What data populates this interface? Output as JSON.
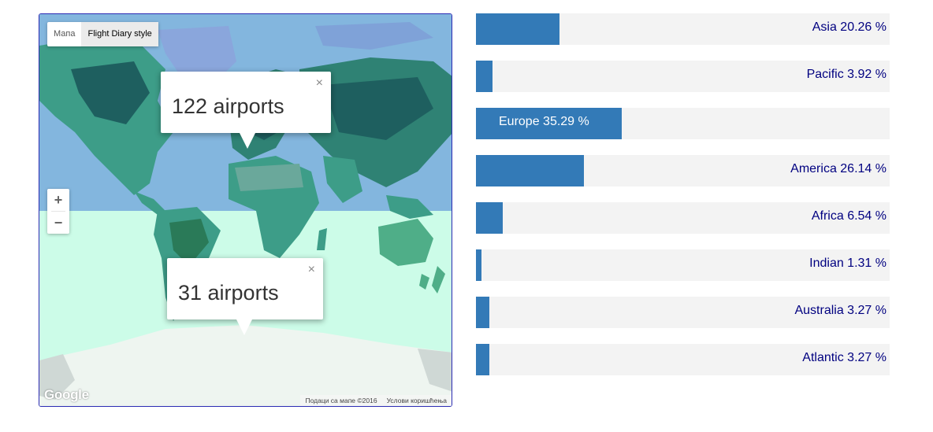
{
  "map": {
    "type_buttons": [
      {
        "label": "Мапа",
        "active": false
      },
      {
        "label": "Flight Diary style",
        "active": true
      }
    ],
    "zoom_in": "+",
    "zoom_out": "−",
    "infowindows": [
      {
        "text": "122 airports",
        "close": "×"
      },
      {
        "text": "31 airports",
        "close": "×"
      }
    ],
    "google_logo": "Google",
    "attribution": {
      "data": "Подаци са мапе ©2016",
      "terms": "Услови коришћења"
    },
    "colors": {
      "north": "#83b6de",
      "south": "#ccfce8",
      "land": "#3d9d88",
      "land_dark": "#1e5f5f",
      "antarctica": "#eef5f0"
    }
  },
  "bars": {
    "color": "#337ab7",
    "track": "#f3f3f3",
    "items": [
      {
        "name": "Asia",
        "value": 20.26,
        "label": "Asia 20.26 %"
      },
      {
        "name": "Pacific",
        "value": 3.92,
        "label": "Pacific 3.92 %"
      },
      {
        "name": "Europe",
        "value": 35.29,
        "label": "Europe 35.29 %",
        "label_inside": true
      },
      {
        "name": "America",
        "value": 26.14,
        "label": "America 26.14 %"
      },
      {
        "name": "Africa",
        "value": 6.54,
        "label": "Africa 6.54 %"
      },
      {
        "name": "Indian",
        "value": 1.31,
        "label": "Indian 1.31 %"
      },
      {
        "name": "Australia",
        "value": 3.27,
        "label": "Australia 3.27 %"
      },
      {
        "name": "Atlantic",
        "value": 3.27,
        "label": "Atlantic 3.27 %"
      }
    ]
  }
}
